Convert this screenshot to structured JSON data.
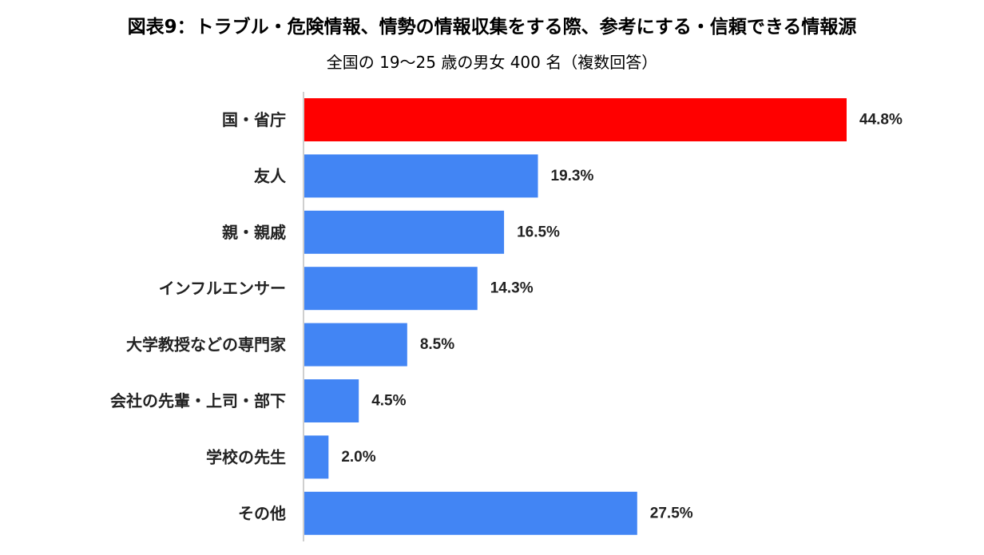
{
  "chart_data": {
    "type": "bar",
    "orientation": "horizontal",
    "title": "図表9：トラブル・危険情報、情勢の情報収集をする際、参考にする・信頼できる情報源",
    "subtitle": "全国の 19〜25 歳の男女 400 名（複数回答）",
    "categories": [
      "国・省庁",
      "友人",
      "親・親戚",
      "インフルエンサー",
      "大学教授などの専門家",
      "会社の先輩・上司・部下",
      "学校の先生",
      "その他"
    ],
    "values": [
      44.8,
      19.3,
      16.5,
      14.3,
      8.5,
      4.5,
      2.0,
      27.5
    ],
    "value_labels": [
      "44.8%",
      "19.3%",
      "16.5%",
      "14.3%",
      "8.5%",
      "4.5%",
      "2.0%",
      "27.5%"
    ],
    "unit": "%",
    "xlim": [
      0,
      50
    ],
    "grid": false,
    "legend": "none",
    "colors": {
      "highlight": "#ff0000",
      "default": "#4285f4",
      "axis": "#bfbfbf"
    },
    "highlight_index": 0
  }
}
